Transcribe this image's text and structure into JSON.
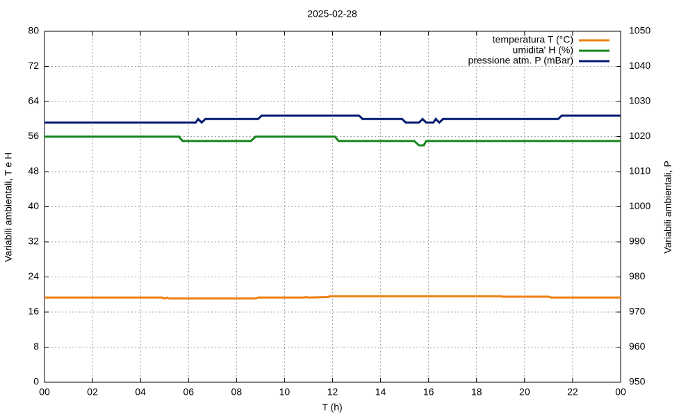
{
  "chart_data": {
    "type": "line",
    "title": "2025-02-28",
    "xlabel": "T (h)",
    "ylabel": "Variabili ambientali, T e H",
    "y2label": "Variabili ambientali, P",
    "xlim": [
      0,
      24
    ],
    "xticks": [
      {
        "value": 0,
        "label": "00"
      },
      {
        "value": 2,
        "label": "02"
      },
      {
        "value": 4,
        "label": "04"
      },
      {
        "value": 6,
        "label": "06"
      },
      {
        "value": 8,
        "label": "08"
      },
      10,
      12,
      14,
      16,
      18,
      20,
      22,
      {
        "value": 24,
        "label": "00"
      }
    ],
    "ylim": [
      0,
      80
    ],
    "yticks": [
      0,
      8,
      16,
      24,
      32,
      40,
      48,
      56,
      64,
      72,
      80
    ],
    "y2lim": [
      950,
      1050
    ],
    "y2ticks": [
      950,
      960,
      970,
      980,
      990,
      1000,
      1010,
      1020,
      1030,
      1040,
      1050
    ],
    "grid": true,
    "legend": "upper right",
    "series": [
      {
        "name": "temperatura T (°C)",
        "color": "#f07f10",
        "x": [
          0,
          4.9,
          5.0,
          5.1,
          5.2,
          5.3,
          8.8,
          8.9,
          10.8,
          10.9,
          11.0,
          11.8,
          11.9,
          19.0,
          19.1,
          21.0,
          21.1,
          24
        ],
        "values": [
          19.3,
          19.3,
          19.1,
          19.3,
          19.1,
          19.1,
          19.1,
          19.3,
          19.3,
          19.4,
          19.3,
          19.4,
          19.6,
          19.6,
          19.5,
          19.5,
          19.3,
          19.3
        ]
      },
      {
        "name": "umidita' H (%)",
        "color": "#16861a",
        "x": [
          0,
          5.6,
          5.75,
          8.6,
          8.8,
          12.1,
          12.25,
          15.4,
          15.6,
          15.8,
          15.9,
          24
        ],
        "values": [
          56,
          56,
          55,
          55,
          56,
          56,
          55,
          55,
          54,
          54,
          55,
          55
        ]
      },
      {
        "name": "pressione atm. P (mBar)",
        "color": "#001a70",
        "axis": "y2",
        "x": [
          0,
          6.3,
          6.4,
          6.55,
          6.7,
          8.9,
          9.05,
          13.1,
          13.25,
          14.9,
          15.05,
          15.6,
          15.75,
          15.9,
          16.2,
          16.3,
          16.45,
          16.6,
          21.4,
          21.55,
          24
        ],
        "values": [
          1024,
          1024,
          1025,
          1024,
          1025,
          1025,
          1026,
          1026,
          1025,
          1025,
          1024,
          1024,
          1025,
          1024,
          1024,
          1025,
          1024,
          1025,
          1025,
          1026,
          1026
        ]
      }
    ]
  }
}
